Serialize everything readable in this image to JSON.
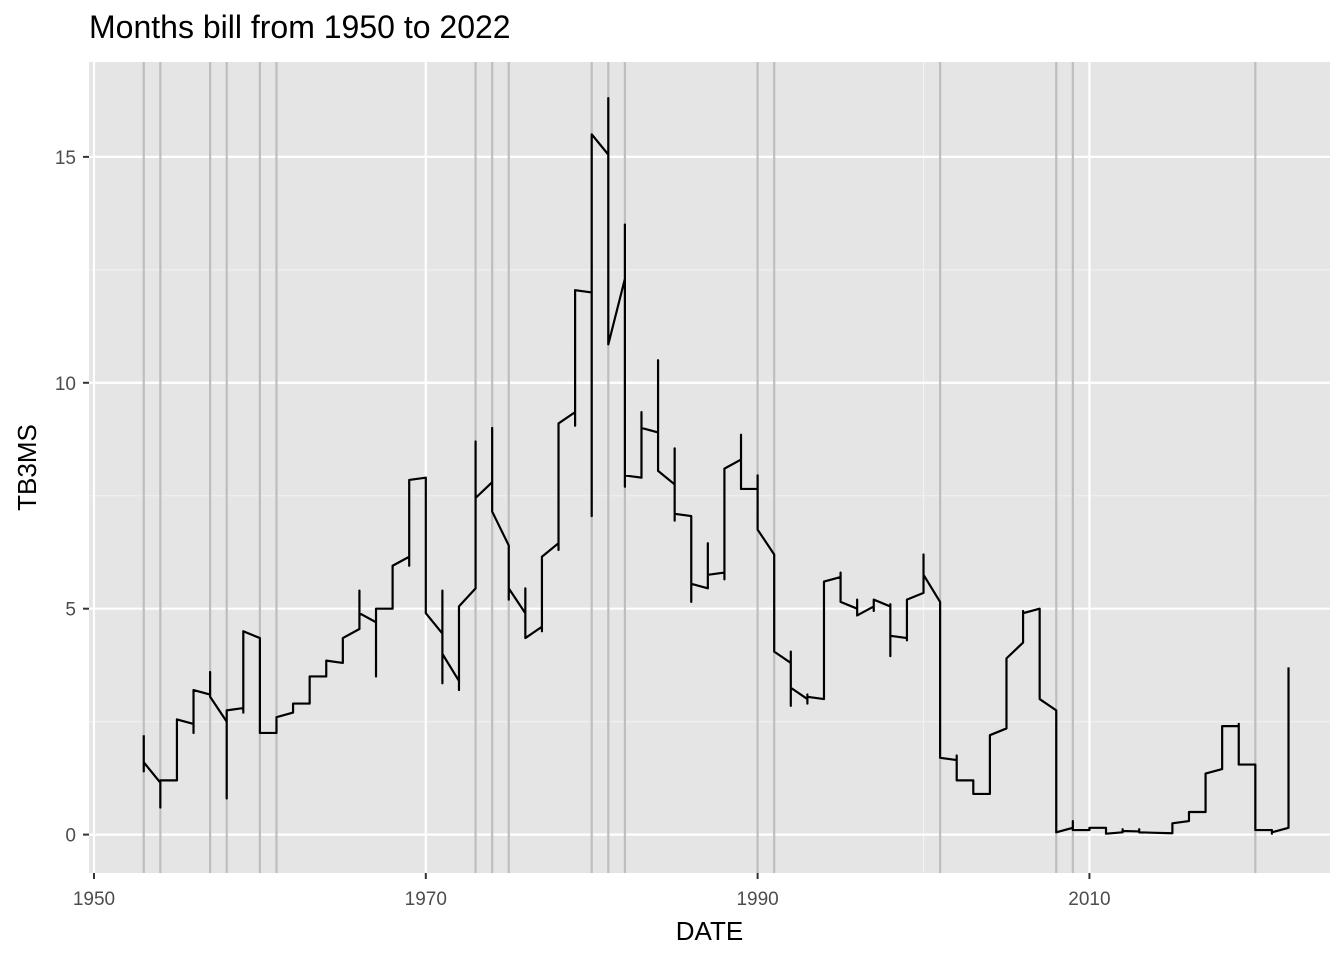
{
  "chart_data": {
    "type": "line",
    "title": "Months bill from 1950 to 2022",
    "xlabel": "DATE",
    "ylabel": "TB3MS",
    "xlim": [
      1949.7,
      2024.5
    ],
    "ylim": [
      -0.85,
      17.1
    ],
    "x_ticks": [
      1950,
      1970,
      1990,
      2010
    ],
    "x_tick_labels": [
      "1950",
      "1970",
      "1990",
      "2010"
    ],
    "y_ticks": [
      0,
      5,
      10,
      15
    ],
    "y_tick_labels": [
      "0",
      "5",
      "10",
      "15"
    ],
    "x_minor_ticks": [
      1960,
      1980,
      2000,
      2020
    ],
    "y_minor_ticks": [
      2.5,
      7.5,
      12.5
    ],
    "grid": true,
    "background": "#e5e5e5",
    "line_color": "#000000",
    "vline_color": "#bebebe",
    "vlines": [
      1953.0,
      1954.0,
      1957.0,
      1958.0,
      1960.0,
      1961.0,
      1973.0,
      1974.0,
      1975.0,
      1980.0,
      1981.0,
      1982.0,
      1990.0,
      1991.0,
      2001.0,
      2008.0,
      2009.0,
      2020.0
    ],
    "series": [
      {
        "values": [
          [
            1953.0,
            2.2
          ],
          [
            1953.0,
            1.4
          ],
          [
            1953.0,
            1.6
          ],
          [
            1954.0,
            1.15
          ],
          [
            1954.0,
            0.6
          ],
          [
            1954.0,
            1.2
          ],
          [
            1955.0,
            1.2
          ],
          [
            1955.0,
            2.55
          ],
          [
            1956.0,
            2.45
          ],
          [
            1956.0,
            2.25
          ],
          [
            1956.0,
            3.2
          ],
          [
            1957.0,
            3.1
          ],
          [
            1957.0,
            3.6
          ],
          [
            1957.0,
            3.05
          ],
          [
            1958.0,
            2.5
          ],
          [
            1958.0,
            0.8
          ],
          [
            1958.0,
            2.75
          ],
          [
            1959.0,
            2.8
          ],
          [
            1959.0,
            2.7
          ],
          [
            1959.0,
            4.5
          ],
          [
            1960.0,
            4.35
          ],
          [
            1960.0,
            2.25
          ],
          [
            1961.0,
            2.25
          ],
          [
            1961.0,
            2.6
          ],
          [
            1962.0,
            2.7
          ],
          [
            1962.0,
            2.9
          ],
          [
            1963.0,
            2.9
          ],
          [
            1963.0,
            3.5
          ],
          [
            1964.0,
            3.5
          ],
          [
            1964.0,
            3.85
          ],
          [
            1965.0,
            3.8
          ],
          [
            1965.0,
            4.35
          ],
          [
            1966.0,
            4.55
          ],
          [
            1966.0,
            5.4
          ],
          [
            1966.0,
            4.9
          ],
          [
            1967.0,
            4.7
          ],
          [
            1967.0,
            3.5
          ],
          [
            1967.0,
            5.0
          ],
          [
            1968.0,
            5.0
          ],
          [
            1968.0,
            5.95
          ],
          [
            1969.0,
            6.15
          ],
          [
            1969.0,
            5.95
          ],
          [
            1969.0,
            7.85
          ],
          [
            1970.0,
            7.9
          ],
          [
            1970.0,
            4.9
          ],
          [
            1971.0,
            4.45
          ],
          [
            1971.0,
            5.4
          ],
          [
            1971.0,
            3.35
          ],
          [
            1971.0,
            4.0
          ],
          [
            1972.0,
            3.4
          ],
          [
            1972.0,
            3.2
          ],
          [
            1972.0,
            5.05
          ],
          [
            1973.0,
            5.45
          ],
          [
            1973.0,
            8.7
          ],
          [
            1973.0,
            7.45
          ],
          [
            1974.0,
            7.8
          ],
          [
            1974.0,
            9.0
          ],
          [
            1974.0,
            7.15
          ],
          [
            1975.0,
            6.4
          ],
          [
            1975.0,
            5.2
          ],
          [
            1975.0,
            5.45
          ],
          [
            1976.0,
            4.9
          ],
          [
            1976.0,
            5.45
          ],
          [
            1976.0,
            4.35
          ],
          [
            1977.0,
            4.6
          ],
          [
            1977.0,
            4.5
          ],
          [
            1977.0,
            6.15
          ],
          [
            1978.0,
            6.45
          ],
          [
            1978.0,
            6.3
          ],
          [
            1978.0,
            9.1
          ],
          [
            1979.0,
            9.35
          ],
          [
            1979.0,
            9.05
          ],
          [
            1979.0,
            12.05
          ],
          [
            1980.0,
            12.0
          ],
          [
            1980.0,
            7.05
          ],
          [
            1980.0,
            15.5
          ],
          [
            1981.0,
            15.05
          ],
          [
            1981.0,
            16.3
          ],
          [
            1981.0,
            10.85
          ],
          [
            1982.0,
            12.3
          ],
          [
            1982.0,
            13.5
          ],
          [
            1982.0,
            7.7
          ],
          [
            1982.0,
            7.95
          ],
          [
            1983.0,
            7.9
          ],
          [
            1983.0,
            9.35
          ],
          [
            1983.0,
            9.0
          ],
          [
            1984.0,
            8.9
          ],
          [
            1984.0,
            10.5
          ],
          [
            1984.0,
            8.05
          ],
          [
            1985.0,
            7.75
          ],
          [
            1985.0,
            8.55
          ],
          [
            1985.0,
            6.95
          ],
          [
            1985.0,
            7.1
          ],
          [
            1986.0,
            7.05
          ],
          [
            1986.0,
            5.15
          ],
          [
            1986.0,
            5.55
          ],
          [
            1987.0,
            5.45
          ],
          [
            1987.0,
            6.45
          ],
          [
            1987.0,
            5.75
          ],
          [
            1988.0,
            5.8
          ],
          [
            1988.0,
            5.65
          ],
          [
            1988.0,
            8.1
          ],
          [
            1989.0,
            8.3
          ],
          [
            1989.0,
            8.85
          ],
          [
            1989.0,
            7.65
          ],
          [
            1990.0,
            7.65
          ],
          [
            1990.0,
            7.95
          ],
          [
            1990.0,
            6.75
          ],
          [
            1991.0,
            6.2
          ],
          [
            1991.0,
            4.05
          ],
          [
            1992.0,
            3.8
          ],
          [
            1992.0,
            4.05
          ],
          [
            1992.0,
            2.85
          ],
          [
            1992.0,
            3.25
          ],
          [
            1993.0,
            3.0
          ],
          [
            1993.0,
            3.1
          ],
          [
            1993.0,
            2.9
          ],
          [
            1993.0,
            3.05
          ],
          [
            1994.0,
            3.0
          ],
          [
            1994.0,
            5.6
          ],
          [
            1995.0,
            5.7
          ],
          [
            1995.0,
            5.8
          ],
          [
            1995.0,
            5.15
          ],
          [
            1996.0,
            5.0
          ],
          [
            1996.0,
            5.2
          ],
          [
            1996.0,
            4.85
          ],
          [
            1997.0,
            5.05
          ],
          [
            1997.0,
            4.95
          ],
          [
            1997.0,
            5.2
          ],
          [
            1998.0,
            5.05
          ],
          [
            1998.0,
            5.1
          ],
          [
            1998.0,
            3.95
          ],
          [
            1998.0,
            4.4
          ],
          [
            1999.0,
            4.35
          ],
          [
            1999.0,
            4.3
          ],
          [
            1999.0,
            5.2
          ],
          [
            2000.0,
            5.35
          ],
          [
            2000.0,
            6.2
          ],
          [
            2000.0,
            5.75
          ],
          [
            2001.0,
            5.15
          ],
          [
            2001.0,
            1.7
          ],
          [
            2002.0,
            1.65
          ],
          [
            2002.0,
            1.75
          ],
          [
            2002.0,
            1.2
          ],
          [
            2003.0,
            1.2
          ],
          [
            2003.0,
            0.9
          ],
          [
            2004.0,
            0.9
          ],
          [
            2004.0,
            2.2
          ],
          [
            2005.0,
            2.35
          ],
          [
            2005.0,
            3.9
          ],
          [
            2006.0,
            4.25
          ],
          [
            2006.0,
            4.95
          ],
          [
            2006.0,
            4.9
          ],
          [
            2007.0,
            5.0
          ],
          [
            2007.0,
            3.0
          ],
          [
            2008.0,
            2.75
          ],
          [
            2008.0,
            0.05
          ],
          [
            2009.0,
            0.15
          ],
          [
            2009.0,
            0.3
          ],
          [
            2009.0,
            0.1
          ],
          [
            2010.0,
            0.1
          ],
          [
            2010.0,
            0.15
          ],
          [
            2011.0,
            0.15
          ],
          [
            2011.0,
            0.02
          ],
          [
            2012.0,
            0.05
          ],
          [
            2012.0,
            0.12
          ],
          [
            2012.0,
            0.08
          ],
          [
            2013.0,
            0.07
          ],
          [
            2013.0,
            0.12
          ],
          [
            2013.0,
            0.05
          ],
          [
            2014.0,
            0.04
          ],
          [
            2015.0,
            0.03
          ],
          [
            2015.0,
            0.25
          ],
          [
            2016.0,
            0.3
          ],
          [
            2016.0,
            0.5
          ],
          [
            2017.0,
            0.5
          ],
          [
            2017.0,
            1.35
          ],
          [
            2018.0,
            1.45
          ],
          [
            2018.0,
            2.4
          ],
          [
            2019.0,
            2.4
          ],
          [
            2019.0,
            2.45
          ],
          [
            2019.0,
            1.55
          ],
          [
            2020.0,
            1.55
          ],
          [
            2020.0,
            0.1
          ],
          [
            2021.0,
            0.1
          ],
          [
            2021.0,
            0.08
          ],
          [
            2021.0,
            0.02
          ],
          [
            2021.0,
            0.05
          ],
          [
            2022.0,
            0.15
          ],
          [
            2022.0,
            3.7
          ]
        ]
      }
    ]
  }
}
